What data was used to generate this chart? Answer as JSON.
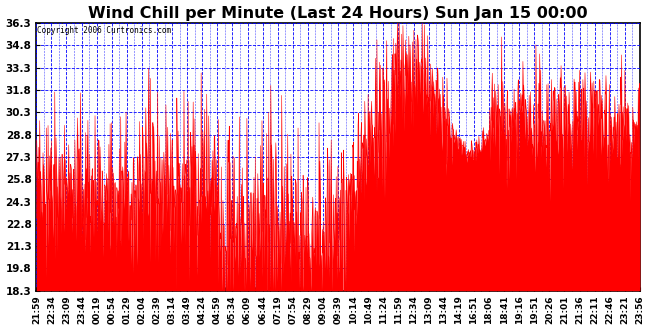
{
  "title": "Wind Chill per Minute (Last 24 Hours) Sun Jan 15 00:00",
  "copyright": "Copyright 2006 Curtronics.com",
  "ylabel_ticks": [
    18.3,
    19.8,
    21.3,
    22.8,
    24.3,
    25.8,
    27.3,
    28.8,
    30.3,
    31.8,
    33.3,
    34.8,
    36.3
  ],
  "ylim": [
    18.3,
    36.3
  ],
  "background_color": "#ffffff",
  "grid_color": "#0000ff",
  "data_color": "#ff0000",
  "title_fontsize": 12,
  "x_labels": [
    "21:59",
    "22:34",
    "23:09",
    "23:44",
    "00:19",
    "00:54",
    "01:29",
    "02:04",
    "02:39",
    "03:14",
    "03:49",
    "04:24",
    "04:59",
    "05:34",
    "06:09",
    "06:44",
    "07:19",
    "07:54",
    "08:29",
    "09:04",
    "09:39",
    "10:14",
    "10:49",
    "11:24",
    "11:59",
    "12:34",
    "13:09",
    "13:44",
    "14:19",
    "16:51",
    "18:06",
    "18:41",
    "19:16",
    "19:51",
    "20:26",
    "21:01",
    "21:36",
    "22:11",
    "22:46",
    "23:21",
    "23:56"
  ],
  "seed": 1234
}
